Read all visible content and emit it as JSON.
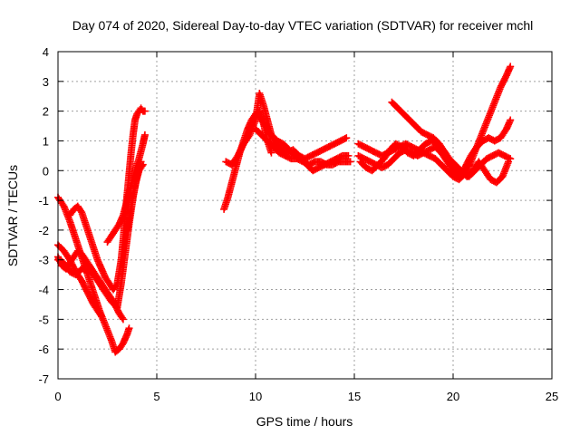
{
  "chart_data": {
    "type": "scatter",
    "title": "Day 074 of 2020, Sidereal Day-to-day VTEC variation (SDTVAR) for receiver mchl",
    "xlabel": "GPS time / hours",
    "ylabel": "SDTVAR / TECUs",
    "xlim": [
      0,
      25
    ],
    "ylim": [
      -7,
      4
    ],
    "xticks": [
      0,
      5,
      10,
      15,
      20,
      25
    ],
    "yticks": [
      -7,
      -6,
      -5,
      -4,
      -3,
      -2,
      -1,
      0,
      1,
      2,
      3,
      4
    ],
    "xtick_labels": [
      "0",
      "5",
      "10",
      "15",
      "20",
      "25"
    ],
    "ytick_labels": [
      "-7",
      "-6",
      "-5",
      "-4",
      "-3",
      "-2",
      "-1",
      "0",
      "1",
      "2",
      "3",
      "4"
    ],
    "grid": true,
    "marker": "plus",
    "color": "#ff0000",
    "series": [
      {
        "x": [
          0.0,
          0.3,
          0.6,
          0.9,
          1.2,
          1.5,
          1.8,
          2.1,
          2.4,
          2.7,
          2.9,
          3.1,
          3.3,
          3.5,
          3.6
        ],
        "y": [
          -0.9,
          -1.2,
          -1.7,
          -2.3,
          -2.9,
          -3.5,
          -4.1,
          -4.7,
          -5.2,
          -5.7,
          -6.1,
          -6.0,
          -5.8,
          -5.5,
          -5.3
        ]
      },
      {
        "x": [
          0.0,
          0.3,
          0.6,
          0.9,
          1.2,
          1.5,
          1.8,
          2.0,
          2.2
        ],
        "y": [
          -2.5,
          -2.7,
          -3.0,
          -3.4,
          -3.7,
          -4.1,
          -4.5,
          -4.7,
          -4.9
        ]
      },
      {
        "x": [
          0.0,
          0.2,
          0.4,
          0.6,
          0.8,
          1.0,
          1.2,
          1.4,
          1.6,
          1.9,
          2.2,
          2.5,
          2.8,
          3.1,
          3.3
        ],
        "y": [
          -2.9,
          -3.2,
          -3.3,
          -3.1,
          -2.9,
          -2.7,
          -2.8,
          -3.0,
          -3.2,
          -3.5,
          -3.8,
          -4.1,
          -4.4,
          -4.8,
          -5.0
        ]
      },
      {
        "x": [
          0.0,
          0.3,
          0.6,
          0.9,
          1.2,
          1.5,
          1.8,
          2.1,
          2.4,
          2.7,
          3.0,
          3.2,
          3.4,
          3.6,
          3.8,
          4.0,
          4.2
        ],
        "y": [
          -3.0,
          -3.1,
          -3.4,
          -3.5,
          -3.3,
          -3.3,
          -3.5,
          -3.8,
          -4.1,
          -4.4,
          -4.6,
          -3.8,
          -2.8,
          -1.8,
          -0.9,
          -0.2,
          0.3
        ]
      },
      {
        "x": [
          0.6,
          0.8,
          1.0,
          1.2,
          1.4,
          1.6,
          1.8,
          2.0,
          2.2,
          2.4,
          2.6,
          2.8,
          3.0,
          3.2,
          3.3,
          3.4,
          3.5,
          3.6,
          3.7,
          3.8,
          3.9,
          4.0,
          4.1,
          4.2,
          4.3,
          4.4
        ],
        "y": [
          -1.5,
          -1.3,
          -1.2,
          -1.4,
          -1.8,
          -2.2,
          -2.6,
          -3.0,
          -3.3,
          -3.6,
          -3.8,
          -4.0,
          -3.8,
          -3.0,
          -2.3,
          -1.5,
          -0.8,
          -0.1,
          0.6,
          1.2,
          1.7,
          1.9,
          2.0,
          2.1,
          2.0,
          2.0
        ]
      },
      {
        "x": [
          2.5,
          2.7,
          2.9,
          3.1,
          3.3,
          3.5,
          3.7,
          3.9,
          4.1,
          4.3,
          4.4
        ],
        "y": [
          -2.4,
          -2.2,
          -2.0,
          -1.8,
          -1.5,
          -1.0,
          -0.5,
          0.0,
          0.4,
          0.9,
          1.2
        ]
      },
      {
        "x": [
          3.5,
          3.7,
          3.9,
          4.1,
          4.3
        ],
        "y": [
          -2.0,
          -1.2,
          -0.5,
          0.0,
          0.2
        ]
      },
      {
        "x": [
          8.4,
          8.6,
          8.8,
          9.0,
          9.2,
          9.4,
          9.6,
          9.8,
          10.0,
          10.2,
          10.4,
          10.6,
          10.8
        ],
        "y": [
          -1.3,
          -0.9,
          -0.4,
          0.1,
          0.6,
          1.0,
          1.4,
          1.7,
          1.9,
          2.0,
          1.6,
          1.0,
          0.6
        ]
      },
      {
        "x": [
          8.5,
          8.8,
          9.1,
          9.4,
          9.7,
          10.0,
          10.2,
          10.4,
          10.6,
          10.8,
          11.0,
          11.3,
          11.6,
          11.9,
          12.2,
          12.5,
          12.8,
          13.1,
          13.4,
          13.7,
          14.0,
          14.3,
          14.6
        ],
        "y": [
          0.3,
          0.2,
          0.5,
          0.9,
          1.2,
          1.7,
          2.6,
          2.2,
          1.7,
          1.2,
          0.9,
          0.7,
          0.6,
          0.7,
          0.5,
          0.4,
          0.5,
          0.6,
          0.7,
          0.8,
          0.9,
          1.0,
          1.1
        ]
      },
      {
        "x": [
          10.0,
          10.3,
          10.6,
          10.9,
          11.2,
          11.5,
          11.8,
          12.1,
          12.4,
          12.7,
          13.0,
          13.3,
          13.6,
          13.9,
          14.2,
          14.5,
          14.8
        ],
        "y": [
          1.4,
          1.2,
          1.0,
          0.8,
          0.6,
          0.5,
          0.4,
          0.4,
          0.3,
          0.2,
          0.3,
          0.3,
          0.2,
          0.2,
          0.3,
          0.3,
          0.3
        ]
      },
      {
        "x": [
          10.2,
          10.5,
          10.8,
          11.1,
          11.4,
          11.7,
          12.0,
          12.3,
          12.6,
          12.9,
          13.2,
          13.5,
          13.8,
          14.1,
          14.4,
          14.7
        ],
        "y": [
          1.8,
          1.5,
          1.2,
          1.0,
          0.9,
          0.7,
          0.5,
          0.4,
          0.2,
          0.0,
          0.1,
          0.2,
          0.3,
          0.4,
          0.5,
          0.5
        ]
      },
      {
        "x": [
          15.2,
          15.5,
          15.8,
          16.1,
          16.4,
          16.7,
          17.0,
          17.3,
          17.6,
          17.9,
          18.2,
          18.5,
          18.8,
          19.1,
          19.4,
          19.7,
          20.0,
          20.3,
          20.6,
          20.9,
          21.2,
          21.5,
          21.8,
          22.1,
          22.4,
          22.7,
          22.9
        ],
        "y": [
          0.9,
          0.8,
          0.7,
          0.6,
          0.5,
          0.6,
          0.7,
          0.8,
          0.9,
          0.8,
          0.7,
          0.6,
          0.5,
          0.4,
          0.2,
          0.0,
          -0.2,
          -0.3,
          -0.1,
          0.3,
          0.8,
          1.3,
          1.8,
          2.3,
          2.8,
          3.2,
          3.5
        ]
      },
      {
        "x": [
          15.2,
          15.5,
          15.8,
          16.1,
          16.4,
          16.7,
          17.0,
          17.3,
          17.6,
          17.9,
          18.2,
          18.5,
          18.8,
          19.1,
          19.4,
          19.7,
          20.0,
          20.3,
          20.6,
          20.9,
          21.2,
          21.5,
          21.8,
          22.1,
          22.4,
          22.7,
          22.9
        ],
        "y": [
          0.5,
          0.4,
          0.3,
          0.2,
          0.1,
          0.2,
          0.4,
          0.6,
          0.7,
          0.6,
          0.5,
          0.6,
          0.7,
          0.8,
          0.6,
          0.3,
          0.0,
          -0.2,
          0.1,
          0.5,
          0.8,
          1.0,
          1.1,
          1.0,
          1.1,
          1.4,
          1.7
        ]
      },
      {
        "x": [
          15.3,
          15.6,
          15.9,
          16.2,
          16.5,
          16.8,
          17.1,
          17.4,
          17.7,
          18.0,
          18.3,
          18.6,
          18.9,
          19.2,
          19.5,
          19.8,
          20.1,
          20.4,
          20.7,
          21.0,
          21.3,
          21.6,
          21.9,
          22.2,
          22.5,
          22.8
        ],
        "y": [
          0.3,
          0.1,
          0.0,
          0.2,
          0.4,
          0.7,
          0.9,
          0.8,
          0.6,
          0.5,
          0.7,
          0.9,
          1.0,
          0.9,
          0.7,
          0.4,
          0.2,
          0.0,
          -0.2,
          0.0,
          0.3,
          0.0,
          -0.3,
          -0.4,
          -0.2,
          0.3
        ]
      },
      {
        "x": [
          16.9,
          17.2,
          17.5,
          17.8,
          18.1,
          18.4,
          18.7,
          19.0,
          19.3,
          19.6,
          19.9,
          20.2,
          20.5,
          20.8,
          21.1,
          21.4,
          21.7,
          22.0,
          22.3,
          22.6,
          22.9
        ],
        "y": [
          2.3,
          2.1,
          1.9,
          1.7,
          1.5,
          1.3,
          1.2,
          1.1,
          0.9,
          0.6,
          0.3,
          0.0,
          -0.1,
          -0.2,
          0.0,
          0.2,
          0.4,
          0.5,
          0.6,
          0.5,
          0.4
        ]
      }
    ]
  }
}
